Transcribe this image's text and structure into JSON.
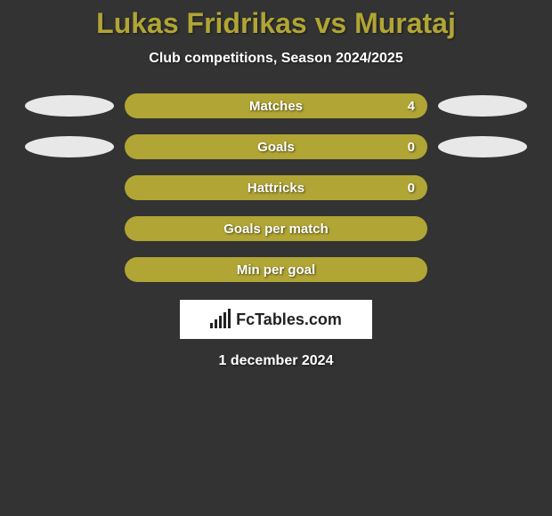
{
  "background_color": "#333333",
  "title": {
    "text": "Lukas Fridrikas vs Murataj",
    "color": "#b0a535",
    "fontsize": 32
  },
  "subtitle": {
    "text": "Club competitions, Season 2024/2025",
    "color": "#ffffff",
    "fontsize": 16
  },
  "stats": {
    "bar_color": "#b0a535",
    "label_color": "#ffffff",
    "rows": [
      {
        "label": "Matches",
        "value": "4",
        "left_ellipse": true,
        "right_ellipse": true,
        "show_value": true
      },
      {
        "label": "Goals",
        "value": "0",
        "left_ellipse": true,
        "right_ellipse": true,
        "show_value": true
      },
      {
        "label": "Hattricks",
        "value": "0",
        "left_ellipse": false,
        "right_ellipse": false,
        "show_value": true
      },
      {
        "label": "Goals per match",
        "value": "",
        "left_ellipse": false,
        "right_ellipse": false,
        "show_value": false
      },
      {
        "label": "Min per goal",
        "value": "",
        "left_ellipse": false,
        "right_ellipse": false,
        "show_value": false
      }
    ]
  },
  "ellipse": {
    "color": "#e8e8e8",
    "width": 100,
    "height": 24
  },
  "logo": {
    "text": "FcTables.com",
    "bg_color": "#ffffff",
    "text_color": "#222222",
    "bars": [
      6,
      10,
      14,
      18,
      22
    ]
  },
  "date": {
    "text": "1 december 2024",
    "color": "#ffffff",
    "fontsize": 16
  }
}
